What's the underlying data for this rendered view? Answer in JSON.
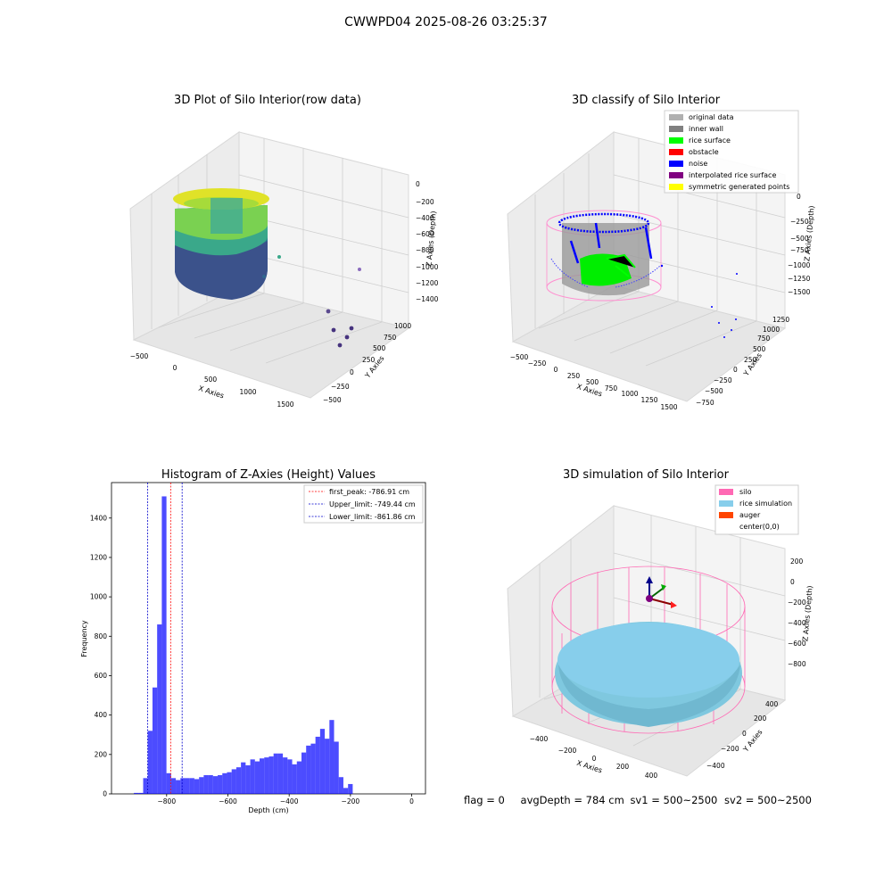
{
  "suptitle": "CWWPD04 2025-08-26 03:25:37",
  "panels": {
    "raw": {
      "title": "3D Plot of Silo Interior(row data)",
      "xlabel": "X Axies",
      "ylabel": "Y Axies",
      "zlabel": "Z Axies (Depth)",
      "xticks": [
        "−500",
        "0",
        "500",
        "1000",
        "1500"
      ],
      "yticks": [
        "−500",
        "−250",
        "0",
        "250",
        "500",
        "750",
        "1000"
      ],
      "zticks": [
        "0",
        "−200",
        "−400",
        "−600",
        "−800",
        "−1000",
        "−1200",
        "−1400"
      ]
    },
    "classify": {
      "title": "3D classify of Silo Interior",
      "xlabel": "X Axies",
      "ylabel": "Y Axies",
      "zlabel": "Z Axies (Depth)",
      "xticks": [
        "−500",
        "−250",
        "0",
        "250",
        "500",
        "750",
        "1000",
        "1250",
        "1500"
      ],
      "yticks": [
        "−750",
        "−500",
        "−250",
        "0",
        "250",
        "500",
        "750",
        "1000",
        "1250"
      ],
      "zticks": [
        "0",
        "−250",
        "−500",
        "−750",
        "−1000",
        "−1250",
        "−1500"
      ],
      "legend": [
        {
          "label": "original data",
          "color": "#b0b0b0"
        },
        {
          "label": "inner wall",
          "color": "#808080"
        },
        {
          "label": "rice surface",
          "color": "#00ff00"
        },
        {
          "label": "obstacle",
          "color": "#ff0000"
        },
        {
          "label": "noise",
          "color": "#0000ff"
        },
        {
          "label": "interpolated rice surface",
          "color": "#800080"
        },
        {
          "label": "symmetric generated points",
          "color": "#ffff00"
        }
      ]
    },
    "simulation": {
      "title": "3D simulation of Silo Interior",
      "xlabel": "X Axies",
      "ylabel": "Y Axies",
      "zlabel": "Z Axies (Depth)",
      "xticks": [
        "−400",
        "−200",
        "0",
        "200",
        "400"
      ],
      "yticks": [
        "−400",
        "−200",
        "0",
        "200",
        "400"
      ],
      "zticks": [
        "200",
        "0",
        "−200",
        "−400",
        "−600",
        "−800"
      ],
      "legend": [
        {
          "label": "silo",
          "color": "#ff69b4"
        },
        {
          "label": "rice simulation",
          "color": "#87ceeb"
        },
        {
          "label": "auger",
          "color": "#ff4500"
        },
        {
          "label": "center(0,0)",
          "color": ""
        }
      ]
    },
    "status": {
      "flag": "flag = 0",
      "avg": "avgDepth = 784 cm",
      "sv1": "sv1 = 500~2500",
      "sv2": "sv2 = 500~2500"
    }
  },
  "chart_data": [
    {
      "type": "bar",
      "title": "Histogram of Z-Axies (Height) Values",
      "xlabel": "Depth (cm)",
      "ylabel": "Frequency",
      "color": "#0000ff",
      "bin_width": 15.2,
      "xlim": [
        -980,
        45
      ],
      "ylim": [
        0,
        1580
      ],
      "xticks": [
        -800,
        -600,
        -400,
        -200,
        0
      ],
      "xtick_labels": [
        "−800",
        "−600",
        "−400",
        "−200",
        "0"
      ],
      "yticks": [
        0,
        200,
        400,
        600,
        800,
        1000,
        1200,
        1400
      ],
      "bin_starts": [
        -907,
        -891.8,
        -876.6,
        -861.4,
        -846.2,
        -831,
        -815.8,
        -800.6,
        -785.4,
        -770.2,
        -755,
        -739.8,
        -724.6,
        -709.4,
        -694.2,
        -679,
        -663.8,
        -648.6,
        -633.4,
        -618.2,
        -603,
        -587.8,
        -572.6,
        -557.4,
        -542.2,
        -527,
        -511.8,
        -496.6,
        -481.4,
        -466.2,
        -451,
        -435.8,
        -420.6,
        -405.4,
        -390.2,
        -375,
        -359.8,
        -344.6,
        -329.4,
        -314.2,
        -299,
        -283.8,
        -268.6,
        -253.4,
        -238.2,
        -223,
        -207.8,
        -192.6,
        -177.4,
        -162.2,
        -147,
        -131.8,
        -116.6,
        -101.4,
        -86.2,
        -71,
        -55.8,
        -40.8,
        -25.6,
        -10.4
      ],
      "values": [
        5,
        5,
        80,
        320,
        540,
        860,
        1510,
        105,
        80,
        70,
        80,
        80,
        80,
        75,
        85,
        95,
        95,
        90,
        95,
        105,
        110,
        125,
        135,
        160,
        145,
        175,
        165,
        180,
        185,
        190,
        205,
        205,
        185,
        175,
        150,
        165,
        210,
        245,
        255,
        290,
        330,
        280,
        375,
        265,
        85,
        30,
        50,
        0,
        0,
        0,
        0,
        0,
        0,
        0,
        0,
        0,
        0,
        0,
        0,
        0
      ],
      "vlines": [
        {
          "label": "first_peak: -786.91 cm",
          "x": -786.91,
          "color": "#ff0000"
        },
        {
          "label": "Upper_limit: -749.44 cm",
          "x": -749.44,
          "color": "#0000cc"
        },
        {
          "label": "Lower_limit: -861.86 cm",
          "x": -861.86,
          "color": "#0000cc"
        }
      ]
    }
  ]
}
